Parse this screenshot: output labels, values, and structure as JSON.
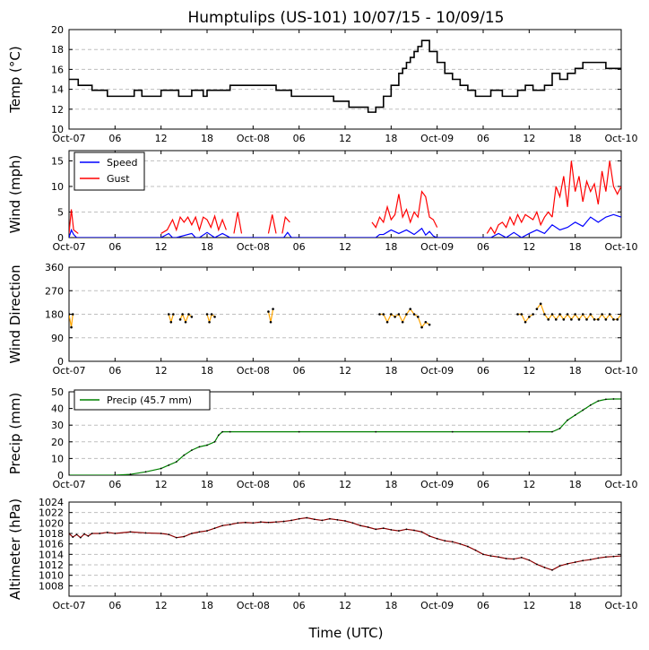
{
  "figure": {
    "title": "Humptulips (US-101) 10/07/15 - 10/09/15",
    "xlabel": "Time (UTC)"
  },
  "colors": {
    "temp": "#000000",
    "speed": "#0000ff",
    "gust": "#ff0000",
    "direction_fill": "#ffa500",
    "direction_point": "#000000",
    "precip": "#008000",
    "altimeter": "#8b0000",
    "grid": "#bfbfbf"
  },
  "chart_data": [
    {
      "id": "temp",
      "type": "line",
      "ylabel": "Temp (°C)",
      "xlim": [
        0,
        72
      ],
      "ylim": [
        10,
        20
      ],
      "yticks": [
        10,
        12,
        14,
        16,
        18,
        20
      ],
      "x_tick_values": [
        0,
        6,
        12,
        18,
        24,
        30,
        36,
        42,
        48,
        54,
        60,
        66,
        72
      ],
      "x_tick_labels": [
        "Oct-07",
        "06",
        "12",
        "18",
        "Oct-08",
        "06",
        "12",
        "18",
        "Oct-09",
        "06",
        "12",
        "18",
        "Oct-10"
      ],
      "series": [
        {
          "name": "Temp",
          "color_key": "temp",
          "step": true,
          "x": [
            0,
            1.2,
            3,
            5,
            8.5,
            9.5,
            12,
            14.3,
            16,
            17.5,
            18,
            21,
            27,
            29,
            31,
            34.5,
            36.5,
            39,
            40,
            41,
            42,
            43,
            43.5,
            44,
            44.5,
            45,
            45.5,
            46,
            47,
            48,
            49,
            50,
            51,
            52,
            53,
            55,
            56.5,
            58.5,
            59.5,
            60.5,
            62,
            63,
            64,
            65,
            66,
            67,
            68,
            70,
            71,
            72
          ],
          "y": [
            15,
            14.4,
            13.9,
            13.3,
            13.9,
            13.3,
            13.9,
            13.3,
            13.9,
            13.3,
            13.9,
            14.4,
            13.9,
            13.3,
            13.3,
            12.8,
            12.2,
            11.7,
            12.2,
            13.3,
            14.4,
            15.6,
            16.1,
            16.7,
            17.2,
            17.8,
            18.3,
            18.9,
            17.8,
            16.7,
            15.6,
            15,
            14.4,
            13.9,
            13.3,
            13.9,
            13.3,
            13.9,
            14.4,
            13.9,
            14.4,
            15.6,
            15,
            15.6,
            16.1,
            16.7,
            16.7,
            16.1,
            16.1,
            16.1
          ]
        }
      ]
    },
    {
      "id": "wind",
      "type": "line",
      "ylabel": "Wind (mph)",
      "xlim": [
        0,
        72
      ],
      "ylim": [
        0,
        17
      ],
      "yticks": [
        0,
        5,
        10,
        15
      ],
      "x_tick_values": [
        0,
        6,
        12,
        18,
        24,
        30,
        36,
        42,
        48,
        54,
        60,
        66,
        72
      ],
      "x_tick_labels": [
        "Oct-07",
        "06",
        "12",
        "18",
        "Oct-08",
        "06",
        "12",
        "18",
        "Oct-09",
        "06",
        "12",
        "18",
        "Oct-10"
      ],
      "legend": [
        {
          "label": "Speed",
          "color_key": "speed"
        },
        {
          "label": "Gust",
          "color_key": "gust"
        }
      ],
      "series": [
        {
          "name": "Speed",
          "color_key": "speed",
          "x": [
            0,
            0.3,
            0.6,
            1,
            12,
            13,
            13.5,
            14,
            16,
            16.5,
            17,
            18,
            19,
            20,
            21,
            28,
            28.5,
            29,
            40,
            40.5,
            41,
            42,
            43,
            44,
            45,
            46,
            46.5,
            47,
            47.5,
            48,
            55,
            56,
            57,
            58,
            59,
            60,
            61,
            62,
            63,
            64,
            65,
            66,
            67,
            68,
            69,
            70,
            71,
            72
          ],
          "y": [
            0,
            1.5,
            0.6,
            0,
            0,
            0.8,
            0,
            0,
            0.8,
            0,
            0,
            1,
            0,
            0.8,
            0,
            0,
            1,
            0,
            0,
            0.6,
            0.6,
            1.5,
            0.8,
            1.5,
            0.6,
            1.8,
            0.5,
            1.2,
            0.3,
            0,
            0,
            0.8,
            0,
            1,
            0,
            0.8,
            1.5,
            0.8,
            2.5,
            1.5,
            2,
            3,
            2.2,
            4,
            3,
            4,
            4.5,
            4
          ]
        },
        {
          "name": "Gust",
          "color_key": "gust",
          "segments": [
            {
              "x": [
                0,
                0.3,
                0.6,
                1.2
              ],
              "y": [
                0.8,
                5.5,
                1.5,
                0.8
              ]
            },
            {
              "x": [
                12,
                12.8,
                13.5,
                14,
                14.5,
                15,
                15.5,
                16,
                16.5,
                17,
                17.5,
                18,
                18.5,
                19,
                19.5,
                20,
                20.5
              ],
              "y": [
                0.8,
                1.5,
                3.5,
                1.5,
                4,
                3,
                4,
                2.5,
                4,
                1.5,
                4,
                3.5,
                2,
                4.2,
                1.5,
                3.5,
                1.5
              ]
            },
            {
              "x": [
                21.5,
                22,
                22.5
              ],
              "y": [
                0.8,
                5,
                0.8
              ]
            },
            {
              "x": [
                26,
                26.5,
                27
              ],
              "y": [
                0.8,
                4.5,
                0.8
              ]
            },
            {
              "x": [
                27.8,
                28.2,
                28.8
              ],
              "y": [
                0.8,
                4,
                3
              ]
            },
            {
              "x": [
                39.5,
                40,
                40.5,
                41,
                41.5,
                42,
                42.5,
                43,
                43.5,
                44,
                44.5,
                45,
                45.5,
                46,
                46.5,
                47,
                47.5,
                48
              ],
              "y": [
                3,
                2,
                4,
                3,
                6,
                3.5,
                4.5,
                8.5,
                4,
                5.5,
                3,
                5,
                4,
                9,
                8,
                4,
                3.5,
                2
              ]
            },
            {
              "x": [
                54.5,
                55,
                55.5,
                56,
                56.5,
                57,
                57.5,
                58,
                58.5,
                59,
                59.5,
                60,
                60.5,
                61,
                61.5,
                62,
                62.5,
                63
              ],
              "y": [
                0.8,
                2,
                0.8,
                2.5,
                3,
                2,
                4,
                2.5,
                4.5,
                3,
                4.5,
                4,
                3.5,
                5,
                2.5,
                4,
                5,
                4
              ]
            },
            {
              "x": [
                63,
                63.5,
                64,
                64.5,
                65,
                65.5,
                66,
                66.5,
                67,
                67.5,
                68,
                68.5,
                69,
                69.5,
                70,
                70.5,
                71,
                71.5,
                72
              ],
              "y": [
                4,
                10,
                8,
                12,
                6,
                15,
                9,
                12,
                7,
                11,
                9,
                10.5,
                6.5,
                13,
                9,
                15,
                10,
                8.5,
                10
              ]
            }
          ]
        }
      ]
    },
    {
      "id": "direction",
      "type": "scatter",
      "ylabel": "Wind Direction",
      "xlim": [
        0,
        72
      ],
      "ylim": [
        0,
        360
      ],
      "yticks": [
        0,
        90,
        180,
        270,
        360
      ],
      "x_tick_values": [
        0,
        6,
        12,
        18,
        24,
        30,
        36,
        42,
        48,
        54,
        60,
        66,
        72
      ],
      "x_tick_labels": [
        "Oct-07",
        "06",
        "12",
        "18",
        "Oct-08",
        "06",
        "12",
        "18",
        "Oct-09",
        "06",
        "12",
        "18",
        "Oct-10"
      ],
      "series": [
        {
          "name": "Wind Direction",
          "color_key": "direction_fill",
          "segments": [
            {
              "x": [
                0,
                0.3,
                0.5
              ],
              "y": [
                180,
                130,
                180
              ]
            },
            {
              "x": [
                13,
                13.3,
                13.6
              ],
              "y": [
                180,
                150,
                180
              ]
            },
            {
              "x": [
                14.5,
                14.8,
                15.2,
                15.6,
                16
              ],
              "y": [
                160,
                180,
                150,
                180,
                170
              ]
            },
            {
              "x": [
                18,
                18.3,
                18.6,
                19
              ],
              "y": [
                180,
                150,
                180,
                170
              ]
            },
            {
              "x": [
                26,
                26.3,
                26.6
              ],
              "y": [
                190,
                150,
                200
              ]
            },
            {
              "x": [
                40.5,
                41,
                41.5,
                42,
                42.5,
                43,
                43.5,
                44,
                44.5,
                45,
                45.5,
                46,
                46.5,
                47
              ],
              "y": [
                180,
                180,
                150,
                180,
                170,
                180,
                150,
                180,
                200,
                180,
                170,
                130,
                150,
                140
              ]
            },
            {
              "x": [
                58.5,
                59,
                59.5,
                60,
                60.5
              ],
              "y": [
                180,
                180,
                150,
                170,
                180
              ]
            },
            {
              "x": [
                61,
                61.5,
                62,
                62.5,
                63,
                63.5,
                64,
                64.5,
                65,
                65.5,
                66,
                66.5,
                67,
                67.5,
                68,
                68.5,
                69,
                69.5,
                70,
                70.5,
                71,
                71.5,
                72
              ],
              "y": [
                200,
                220,
                180,
                160,
                180,
                160,
                180,
                160,
                180,
                160,
                180,
                160,
                180,
                160,
                180,
                160,
                160,
                180,
                160,
                180,
                160,
                160,
                180
              ]
            }
          ]
        }
      ]
    },
    {
      "id": "precip",
      "type": "line",
      "ylabel": "Precip (mm)",
      "xlim": [
        0,
        72
      ],
      "ylim": [
        0,
        50
      ],
      "yticks": [
        0,
        10,
        20,
        30,
        40,
        50
      ],
      "x_tick_values": [
        0,
        6,
        12,
        18,
        24,
        30,
        36,
        42,
        48,
        54,
        60,
        66,
        72
      ],
      "x_tick_labels": [
        "Oct-07",
        "06",
        "12",
        "18",
        "Oct-08",
        "06",
        "12",
        "18",
        "Oct-09",
        "06",
        "12",
        "18",
        "Oct-10"
      ],
      "legend": [
        {
          "label": "Precip (45.7 mm)",
          "color_key": "precip"
        }
      ],
      "series": [
        {
          "name": "Precip (45.7 mm)",
          "color_key": "precip",
          "x": [
            0,
            6,
            8,
            10,
            12,
            13,
            14,
            15,
            16,
            17,
            18,
            19,
            19.5,
            20,
            21,
            30,
            40,
            50,
            60,
            63,
            64,
            65,
            66,
            67,
            68,
            69,
            70,
            71,
            72
          ],
          "y": [
            0,
            0,
            0.5,
            2,
            4,
            6,
            8,
            12,
            15,
            17,
            18,
            20,
            24,
            26,
            26,
            26,
            26,
            26,
            26,
            26,
            28,
            33,
            36,
            39,
            42,
            44.5,
            45.5,
            45.7,
            45.7
          ]
        }
      ]
    },
    {
      "id": "altimeter",
      "type": "line",
      "ylabel": "Altimeter (hPa)",
      "xlim": [
        0,
        72
      ],
      "ylim": [
        1006,
        1024
      ],
      "yticks": [
        1008,
        1010,
        1012,
        1014,
        1016,
        1018,
        1020,
        1022,
        1024
      ],
      "x_tick_values": [
        0,
        6,
        12,
        18,
        24,
        30,
        36,
        42,
        48,
        54,
        60,
        66,
        72
      ],
      "x_tick_labels": [
        "Oct-07",
        "06",
        "12",
        "18",
        "Oct-08",
        "06",
        "12",
        "18",
        "Oct-09",
        "06",
        "12",
        "18",
        "Oct-10"
      ],
      "series": [
        {
          "name": "Altimeter",
          "color_key": "altimeter",
          "x": [
            0,
            0.5,
            1,
            1.5,
            2,
            2.5,
            3,
            4,
            5,
            6,
            8,
            10,
            12,
            13,
            14,
            15,
            16,
            17,
            18,
            19,
            20,
            21,
            22,
            23,
            24,
            25,
            26,
            27,
            28,
            29,
            30,
            31,
            32,
            33,
            34,
            35,
            36,
            37,
            38,
            39,
            40,
            41,
            42,
            43,
            44,
            45,
            46,
            47,
            48,
            49,
            50,
            51,
            52,
            53,
            54,
            55,
            56,
            57,
            58,
            59,
            60,
            61,
            62,
            63,
            64,
            65,
            66,
            67,
            68,
            69,
            70,
            71,
            72
          ],
          "y": [
            1018,
            1017.3,
            1017.8,
            1017.2,
            1017.9,
            1017.5,
            1018,
            1018,
            1018.2,
            1018,
            1018.3,
            1018.1,
            1018,
            1017.8,
            1017.2,
            1017.4,
            1018,
            1018.3,
            1018.5,
            1019,
            1019.5,
            1019.7,
            1020,
            1020.1,
            1020,
            1020.2,
            1020.1,
            1020.2,
            1020.3,
            1020.5,
            1020.8,
            1021,
            1020.7,
            1020.5,
            1020.8,
            1020.6,
            1020.4,
            1020,
            1019.5,
            1019.2,
            1018.8,
            1019,
            1018.7,
            1018.5,
            1018.8,
            1018.6,
            1018.3,
            1017.5,
            1017,
            1016.6,
            1016.4,
            1016,
            1015.5,
            1014.8,
            1014,
            1013.7,
            1013.5,
            1013.2,
            1013.1,
            1013.4,
            1012.9,
            1012.1,
            1011.5,
            1011,
            1011.8,
            1012.2,
            1012.5,
            1012.8,
            1013,
            1013.3,
            1013.5,
            1013.6,
            1013.7
          ]
        }
      ]
    }
  ]
}
